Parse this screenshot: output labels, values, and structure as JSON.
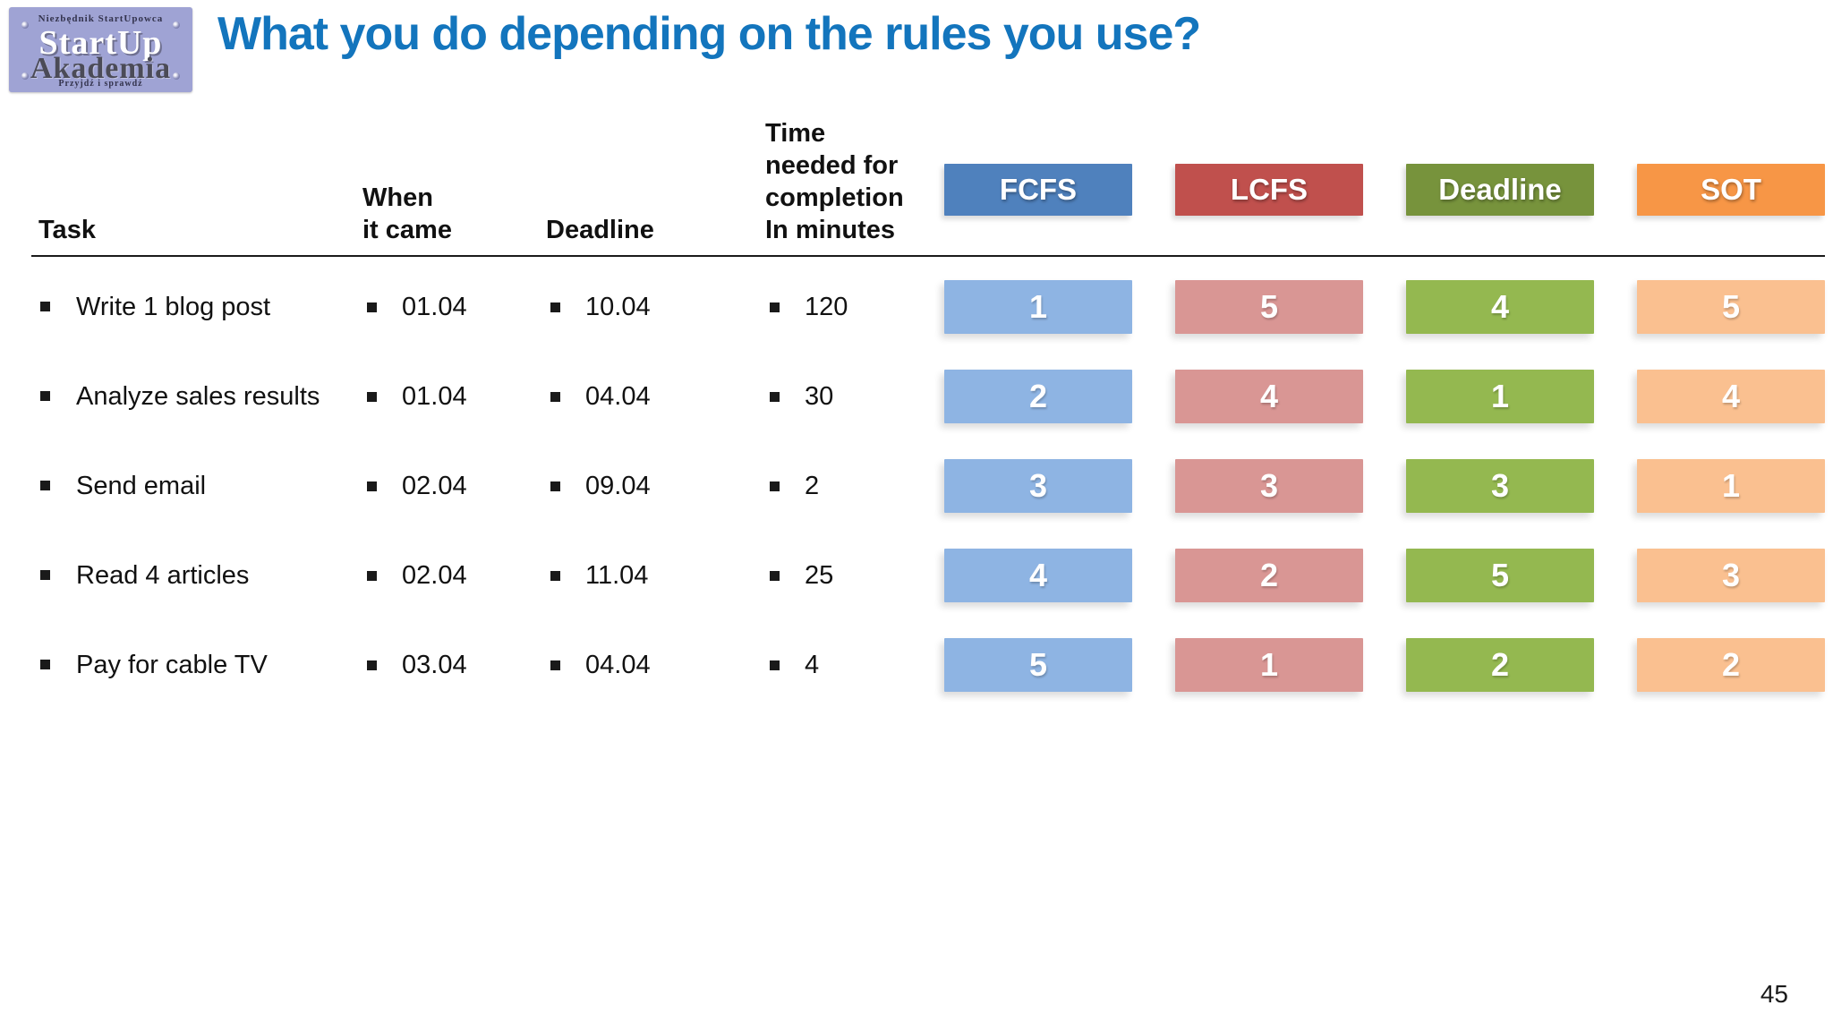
{
  "logo": {
    "tagline_top": "Niezbędnik StartUpowca",
    "name_line1": "StartUp",
    "name_line2": "Akademia",
    "tagline_bottom": "Przyjdź i sprawdź"
  },
  "title": "What you do depending on the rules you use?",
  "page_number": "45",
  "colors": {
    "title_blue": "#1375bd",
    "logo_bg": "#9fa3d4",
    "fcfs_header": "#4f81bd",
    "lcfs_header": "#c0504d",
    "deadline_header": "#77933c",
    "sot_header": "#f79646",
    "fcfs_cell": "#8eb4e3",
    "lcfs_cell": "#d99694",
    "deadline_cell": "#94b850",
    "sot_cell": "#fac090"
  },
  "table": {
    "headers": {
      "task": "Task",
      "when_line1": "When",
      "when_line2": "it came",
      "deadline": "Deadline",
      "time_line1": "Time",
      "time_line2": "needed for",
      "time_line3": "completion",
      "time_line4": "In minutes"
    },
    "rule_headers": {
      "fcfs": "FCFS",
      "lcfs": "LCFS",
      "deadline": "Deadline",
      "sot": "SOT"
    },
    "rows": [
      {
        "task": "Write 1 blog post",
        "came": "01.04",
        "deadline": "10.04",
        "minutes": "120",
        "fcfs": "1",
        "lcfs": "5",
        "deadline_rank": "4",
        "sot": "5"
      },
      {
        "task": "Analyze sales results",
        "came": "01.04",
        "deadline": "04.04",
        "minutes": "30",
        "fcfs": "2",
        "lcfs": "4",
        "deadline_rank": "1",
        "sot": "4"
      },
      {
        "task": "Send email",
        "came": "02.04",
        "deadline": "09.04",
        "minutes": "2",
        "fcfs": "3",
        "lcfs": "3",
        "deadline_rank": "3",
        "sot": "1"
      },
      {
        "task": "Read 4 articles",
        "came": "02.04",
        "deadline": "11.04",
        "minutes": "25",
        "fcfs": "4",
        "lcfs": "2",
        "deadline_rank": "5",
        "sot": "3"
      },
      {
        "task": "Pay for cable TV",
        "came": "03.04",
        "deadline": "04.04",
        "minutes": "4",
        "fcfs": "5",
        "lcfs": "1",
        "deadline_rank": "2",
        "sot": "2"
      }
    ]
  }
}
